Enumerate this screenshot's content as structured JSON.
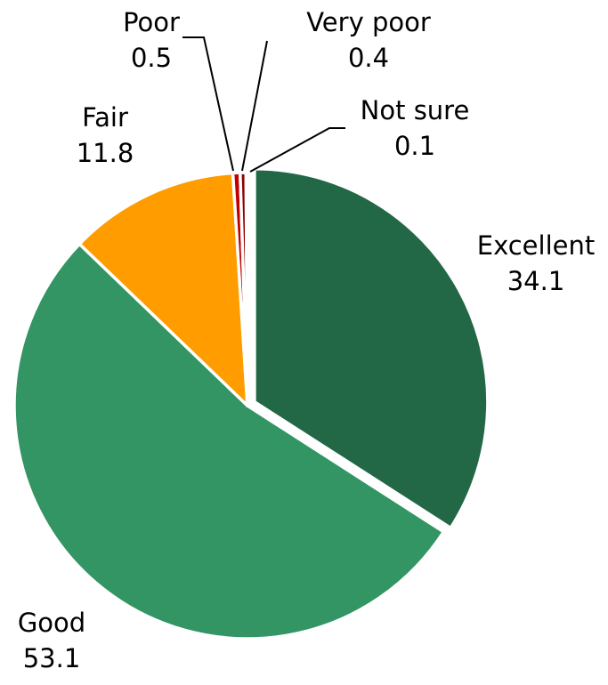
{
  "chart_data": {
    "type": "pie",
    "title": "",
    "slices": [
      {
        "label": "Excellent",
        "value": 34.1,
        "value_text": "34.1",
        "color": "#226846",
        "exploded": true
      },
      {
        "label": "Good",
        "value": 53.1,
        "value_text": "53.1",
        "color": "#339563",
        "exploded": false
      },
      {
        "label": "Fair",
        "value": 11.8,
        "value_text": "11.8",
        "color": "#ff9c00",
        "exploded": false
      },
      {
        "label": "Poor",
        "value": 0.5,
        "value_text": "0.5",
        "color": "#c00000",
        "exploded": false
      },
      {
        "label": "Very poor",
        "value": 0.4,
        "value_text": "0.4",
        "color": "#8b0000",
        "exploded": false
      },
      {
        "label": "Not sure",
        "value": 0.1,
        "value_text": "0.1",
        "color": "#2f2f2f",
        "exploded": false
      }
    ],
    "legend": "none",
    "data_labels": "category and value"
  }
}
